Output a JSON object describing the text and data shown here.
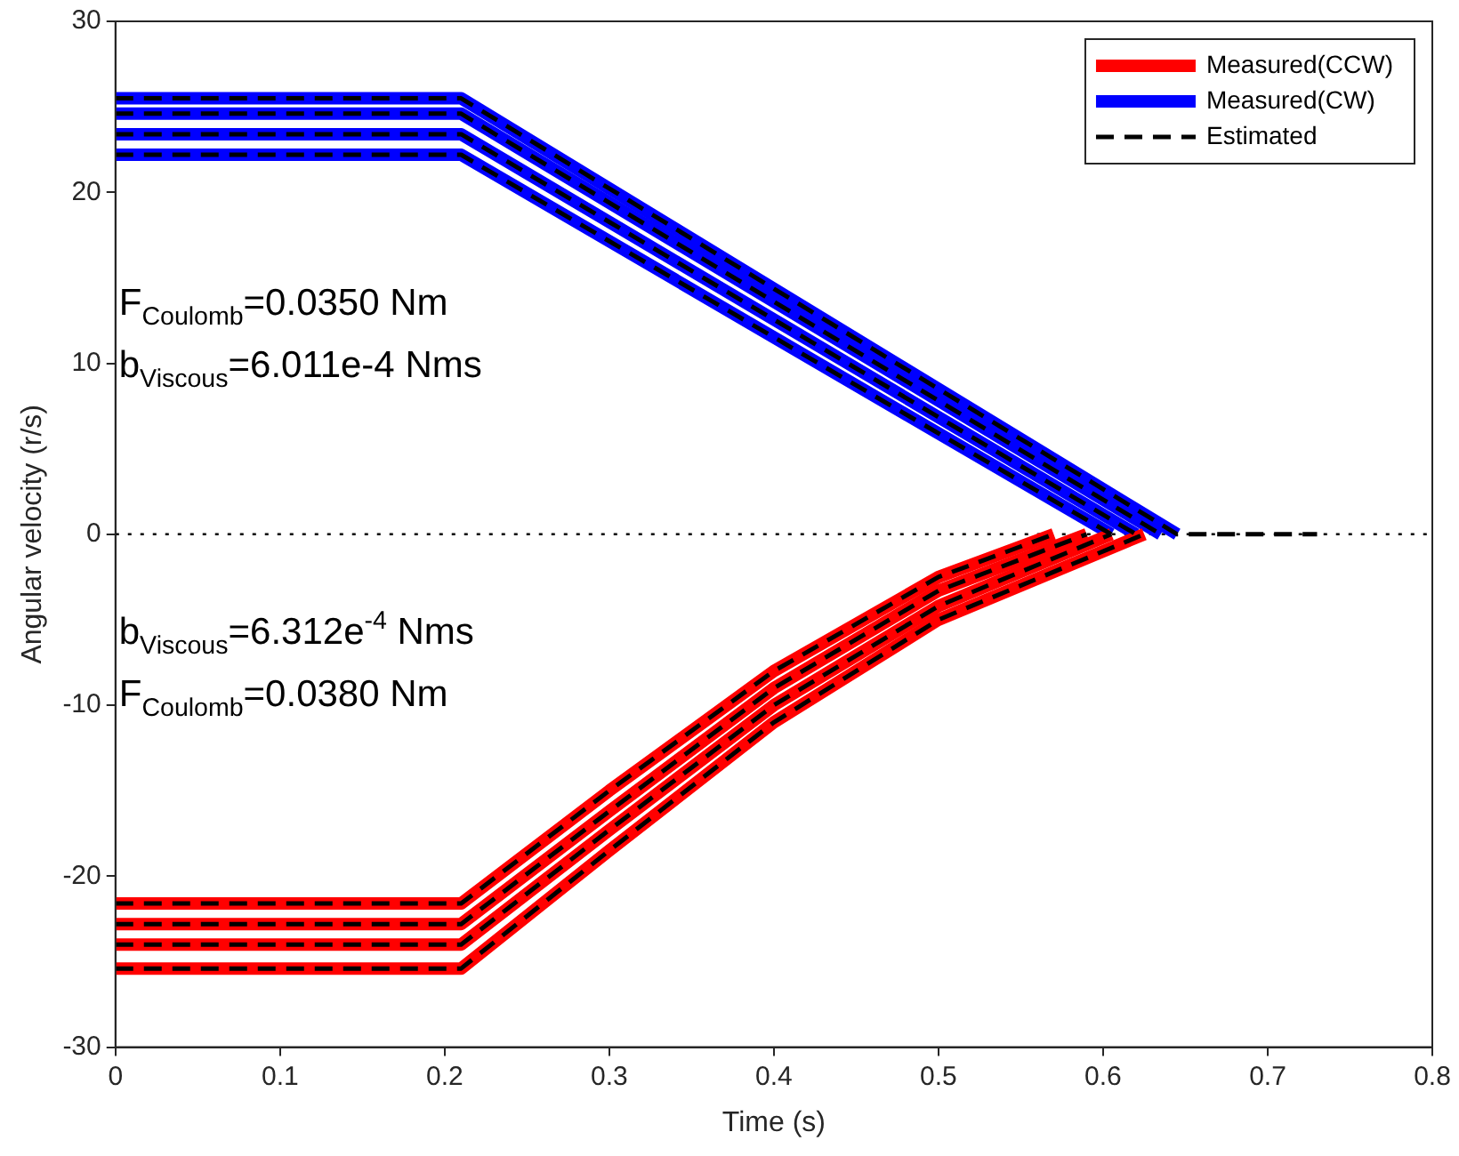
{
  "chart_data": {
    "type": "line",
    "xlabel": "Time (s)",
    "ylabel": "Angular velocity (r/s)",
    "xlim": [
      0,
      0.8
    ],
    "xticks": [
      0,
      0.1,
      0.2,
      0.3,
      0.4,
      0.5,
      0.6,
      0.7,
      0.8
    ],
    "ylim": [
      -30,
      30
    ],
    "yticks": [
      -30,
      -20,
      -10,
      0,
      10,
      20,
      30
    ],
    "grid": false,
    "legend": "top right",
    "marker": "none",
    "ref_lines": [
      {
        "axis": "y",
        "value": 0,
        "color": "#000000",
        "line_style": "dotted"
      }
    ],
    "annotations": [
      "F$_{Coulomb}$=0.0350 Nm",
      "b$_{Viscous}$=6.011e-4 Nms",
      "b$_{Viscous}$=6.312e$^{-4}$ Nms",
      "F$_{Coulomb}$=0.0380 Nm"
    ],
    "series": [
      {
        "name": "Measured(CCW)",
        "color": "#ff0000",
        "line_style": "solid",
        "x": [
          0,
          0.21,
          0.3,
          0.4,
          0.5,
          0.57
        ],
        "values": [
          -21.6,
          -21.6,
          -15,
          -8,
          -2.5,
          0
        ]
      },
      {
        "color": "#ff0000",
        "line_style": "solid",
        "x": [
          0,
          0.21,
          0.3,
          0.4,
          0.5,
          0.59
        ],
        "values": [
          -22.8,
          -22.8,
          -16.2,
          -9,
          -3.3,
          0
        ]
      },
      {
        "color": "#ff0000",
        "line_style": "solid",
        "x": [
          0,
          0.21,
          0.3,
          0.4,
          0.5,
          0.605
        ],
        "values": [
          -24,
          -24,
          -17.3,
          -10,
          -4.2,
          0
        ]
      },
      {
        "color": "#ff0000",
        "line_style": "solid",
        "x": [
          0,
          0.21,
          0.3,
          0.4,
          0.5,
          0.625
        ],
        "values": [
          -25.4,
          -25.4,
          -18.5,
          -11,
          -5,
          0
        ]
      },
      {
        "name": "Measured(CW)",
        "color": "#0000ff",
        "line_style": "solid",
        "x": [
          0,
          0.21,
          0.645
        ],
        "values": [
          25.5,
          25.5,
          0
        ]
      },
      {
        "color": "#0000ff",
        "line_style": "solid",
        "x": [
          0,
          0.21,
          0.635
        ],
        "values": [
          24.6,
          24.6,
          0
        ]
      },
      {
        "color": "#0000ff",
        "line_style": "solid",
        "x": [
          0,
          0.21,
          0.62
        ],
        "values": [
          23.4,
          23.4,
          0
        ]
      },
      {
        "color": "#0000ff",
        "line_style": "solid",
        "x": [
          0,
          0.21,
          0.605
        ],
        "values": [
          22.2,
          22.2,
          0
        ]
      },
      {
        "name": "Estimated",
        "color": "#000000",
        "line_style": "dashed",
        "x": [
          0,
          0.21,
          0.3,
          0.4,
          0.5,
          0.57
        ],
        "values": [
          -21.6,
          -21.6,
          -15,
          -8,
          -2.5,
          0
        ]
      },
      {
        "color": "#000000",
        "line_style": "dashed",
        "x": [
          0,
          0.21,
          0.3,
          0.4,
          0.5,
          0.59
        ],
        "values": [
          -22.8,
          -22.8,
          -16.2,
          -9,
          -3.3,
          0
        ]
      },
      {
        "color": "#000000",
        "line_style": "dashed",
        "x": [
          0,
          0.21,
          0.3,
          0.4,
          0.5,
          0.605
        ],
        "values": [
          -24,
          -24,
          -17.3,
          -10,
          -4.2,
          0
        ]
      },
      {
        "color": "#000000",
        "line_style": "dashed",
        "x": [
          0,
          0.21,
          0.3,
          0.4,
          0.5,
          0.625
        ],
        "values": [
          -25.4,
          -25.4,
          -18.5,
          -11,
          -5,
          0
        ]
      },
      {
        "color": "#000000",
        "line_style": "dashed",
        "x": [
          0,
          0.21,
          0.645,
          0.73
        ],
        "values": [
          25.5,
          25.5,
          0,
          0
        ]
      },
      {
        "color": "#000000",
        "line_style": "dashed",
        "x": [
          0,
          0.21,
          0.635
        ],
        "values": [
          24.6,
          24.6,
          0
        ]
      },
      {
        "color": "#000000",
        "line_style": "dashed",
        "x": [
          0,
          0.21,
          0.62
        ],
        "values": [
          23.4,
          23.4,
          0
        ]
      },
      {
        "color": "#000000",
        "line_style": "dashed",
        "x": [
          0,
          0.21,
          0.605
        ],
        "values": [
          22.2,
          22.2,
          0
        ]
      }
    ]
  }
}
